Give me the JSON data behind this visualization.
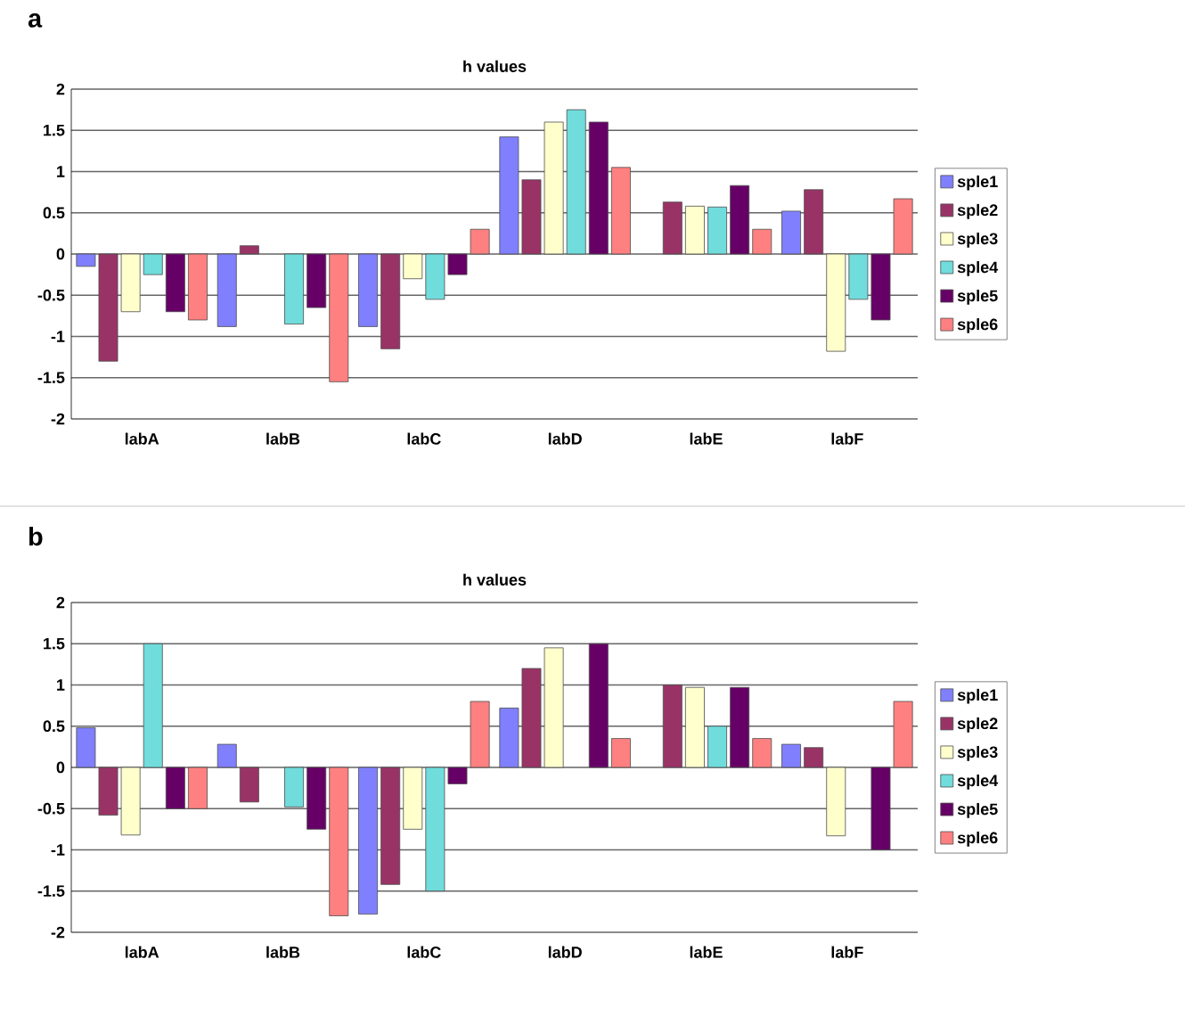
{
  "chart_data": [
    {
      "type": "bar",
      "title": "h values",
      "annotations": [
        "a"
      ],
      "categories": [
        "labA",
        "labB",
        "labC",
        "labD",
        "labE",
        "labF"
      ],
      "series": [
        {
          "name": "sple1",
          "color": "#8080ff",
          "values": [
            -0.15,
            -0.88,
            -0.88,
            1.42,
            null,
            0.52
          ]
        },
        {
          "name": "sple2",
          "color": "#993366",
          "values": [
            -1.3,
            0.1,
            -1.15,
            0.9,
            0.63,
            0.78
          ]
        },
        {
          "name": "sple3",
          "color": "#ffffcc",
          "values": [
            -0.7,
            null,
            -0.3,
            1.6,
            0.58,
            -1.18
          ]
        },
        {
          "name": "sple4",
          "color": "#70dcdc",
          "values": [
            -0.25,
            -0.85,
            -0.55,
            1.75,
            0.57,
            -0.55
          ]
        },
        {
          "name": "sple5",
          "color": "#660066",
          "values": [
            -0.7,
            -0.65,
            -0.25,
            1.6,
            0.83,
            -0.8
          ]
        },
        {
          "name": "sple6",
          "color": "#ff8080",
          "values": [
            -0.8,
            -1.55,
            0.3,
            1.05,
            0.3,
            0.67
          ]
        }
      ],
      "ylim": [
        -2,
        2
      ],
      "yticks": [
        -2,
        -1.5,
        -1,
        -0.5,
        0,
        0.5,
        1,
        1.5,
        2
      ],
      "grid": "y",
      "legend": "right"
    },
    {
      "type": "bar",
      "title": "h values",
      "annotations": [
        "b"
      ],
      "categories": [
        "labA",
        "labB",
        "labC",
        "labD",
        "labE",
        "labF"
      ],
      "series": [
        {
          "name": "sple1",
          "color": "#8080ff",
          "values": [
            0.48,
            0.28,
            -1.78,
            0.72,
            null,
            0.28
          ]
        },
        {
          "name": "sple2",
          "color": "#993366",
          "values": [
            -0.58,
            -0.42,
            -1.42,
            1.2,
            1.0,
            0.24
          ]
        },
        {
          "name": "sple3",
          "color": "#ffffcc",
          "values": [
            -0.82,
            null,
            -0.75,
            1.45,
            0.97,
            -0.83
          ]
        },
        {
          "name": "sple4",
          "color": "#70dcdc",
          "values": [
            1.5,
            -0.48,
            -1.5,
            null,
            0.5,
            null
          ]
        },
        {
          "name": "sple5",
          "color": "#660066",
          "values": [
            -0.5,
            -0.75,
            -0.2,
            1.5,
            0.97,
            -1.0
          ]
        },
        {
          "name": "sple6",
          "color": "#ff8080",
          "values": [
            -0.5,
            -1.8,
            0.8,
            0.35,
            0.35,
            0.8
          ]
        }
      ],
      "ylim": [
        -2,
        2
      ],
      "yticks": [
        -2,
        -1.5,
        -1,
        -0.5,
        0,
        0.5,
        1,
        1.5,
        2
      ],
      "grid": "y",
      "legend": "right"
    }
  ]
}
